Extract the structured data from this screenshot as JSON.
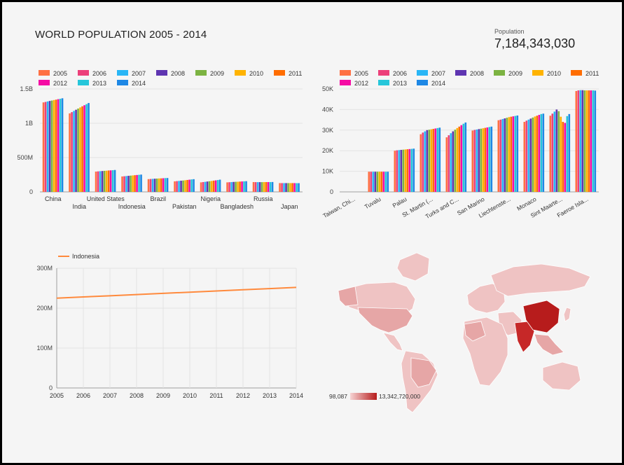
{
  "dashboard": {
    "title": "WORLD POPULATION 2005 - 2014",
    "scorecard_label": "Population",
    "scorecard_value": "7,184,343,030"
  },
  "colors": [
    "#ff7043",
    "#ec407a",
    "#29b6f6",
    "#5e35b1",
    "#7cb342",
    "#ffb300",
    "#ff6d00",
    "#f50ba4",
    "#26c6da",
    "#1e88e5"
  ],
  "chart_data": [
    {
      "type": "bar",
      "legend": [
        "2005",
        "2006",
        "2007",
        "2008",
        "2009",
        "2010",
        "2011",
        "2012",
        "2013",
        "2014"
      ],
      "categories": [
        "China",
        "India",
        "United States",
        "Indonesia",
        "Brazil",
        "Pakistan",
        "Nigeria",
        "Bangladesh",
        "Russia",
        "Japan"
      ],
      "values": [
        [
          1304,
          1311,
          1318,
          1325,
          1331,
          1338,
          1344,
          1351,
          1357,
          1364
        ],
        [
          1144,
          1162,
          1180,
          1197,
          1214,
          1231,
          1247,
          1263,
          1279,
          1295
        ],
        [
          296,
          299,
          302,
          304,
          307,
          309,
          312,
          314,
          316,
          319
        ],
        [
          225,
          228,
          231,
          234,
          237,
          240,
          243,
          246,
          249,
          252
        ],
        [
          186,
          188,
          190,
          192,
          194,
          196,
          197,
          199,
          201,
          202
        ],
        [
          154,
          157,
          160,
          163,
          166,
          170,
          174,
          178,
          182,
          185
        ],
        [
          139,
          143,
          147,
          151,
          155,
          159,
          164,
          168,
          173,
          178
        ],
        [
          139,
          141,
          143,
          145,
          147,
          148,
          150,
          152,
          154,
          156
        ],
        [
          143,
          142,
          142,
          142,
          142,
          143,
          143,
          143,
          143,
          144
        ],
        [
          128,
          128,
          128,
          128,
          128,
          128,
          128,
          128,
          127,
          127
        ]
      ],
      "unit": 1000000,
      "yticks": [
        {
          "v": 0,
          "label": "0"
        },
        {
          "v": 500,
          "label": "500M"
        },
        {
          "v": 1000,
          "label": "1B"
        },
        {
          "v": 1500,
          "label": "1.5B"
        }
      ],
      "ylim": [
        0,
        1500
      ],
      "legend_position": "top-left"
    },
    {
      "type": "bar",
      "legend": [
        "2005",
        "2006",
        "2007",
        "2008",
        "2009",
        "2010",
        "2011",
        "2012",
        "2013",
        "2014"
      ],
      "categories": [
        "Taiwan, Chi...",
        "Tuvalu",
        "Palau",
        "St. Martin (...",
        "Turks and C...",
        "San Marino",
        "Liechtenste...",
        "Monaco",
        "Sint Maarte...",
        "Faeroe Isla..."
      ],
      "values": [
        [
          0,
          0,
          0,
          0,
          0,
          0,
          0,
          0,
          0,
          0
        ],
        [
          9800,
          9800,
          9800,
          9800,
          9800,
          9800,
          9800,
          9800,
          9800,
          9800
        ],
        [
          20000,
          20200,
          20300,
          20400,
          20500,
          20600,
          20700,
          20800,
          20900,
          21000
        ],
        [
          28000,
          28800,
          29400,
          30000,
          30200,
          30400,
          30600,
          30800,
          31000,
          31200
        ],
        [
          26500,
          27500,
          28500,
          29400,
          30200,
          31000,
          31700,
          32400,
          33100,
          33700
        ],
        [
          29800,
          30100,
          30300,
          30500,
          30700,
          30900,
          31100,
          31300,
          31500,
          31700
        ],
        [
          34800,
          35100,
          35400,
          35700,
          36000,
          36300,
          36500,
          36700,
          36900,
          37100
        ],
        [
          34000,
          34600,
          35100,
          35600,
          36100,
          36600,
          37000,
          37400,
          37800,
          38000
        ],
        [
          37000,
          38000,
          39000,
          40000,
          39200,
          36500,
          34000,
          33500,
          36800,
          37800
        ],
        [
          49000,
          49300,
          49400,
          49400,
          49300,
          49300,
          49300,
          49300,
          49300,
          49200
        ]
      ],
      "yticks": [
        {
          "v": 0,
          "label": "0"
        },
        {
          "v": 10000,
          "label": "10K"
        },
        {
          "v": 20000,
          "label": "20K"
        },
        {
          "v": 30000,
          "label": "30K"
        },
        {
          "v": 40000,
          "label": "40K"
        },
        {
          "v": 50000,
          "label": "50K"
        }
      ],
      "ylim": [
        0,
        50000
      ],
      "legend_position": "top-left"
    },
    {
      "type": "line",
      "series": [
        {
          "name": "Indonesia",
          "color": "#ff8a3d",
          "values": [
            225,
            228,
            231,
            234,
            237,
            240,
            243,
            246,
            249,
            252
          ]
        }
      ],
      "x": [
        "2005",
        "2006",
        "2007",
        "2008",
        "2009",
        "2010",
        "2011",
        "2012",
        "2013",
        "2014"
      ],
      "yticks": [
        {
          "v": 0,
          "label": "0"
        },
        {
          "v": 100,
          "label": "100M"
        },
        {
          "v": 200,
          "label": "200M"
        },
        {
          "v": 300,
          "label": "300M"
        }
      ],
      "ylim": [
        0,
        300
      ],
      "grid": true,
      "legend_position": "top-left"
    },
    {
      "type": "map",
      "scale_min_label": "98,087",
      "scale_max_label": "13,342,720,000",
      "color_min": "#f6d3d3",
      "color_max": "#b71c1c"
    }
  ]
}
